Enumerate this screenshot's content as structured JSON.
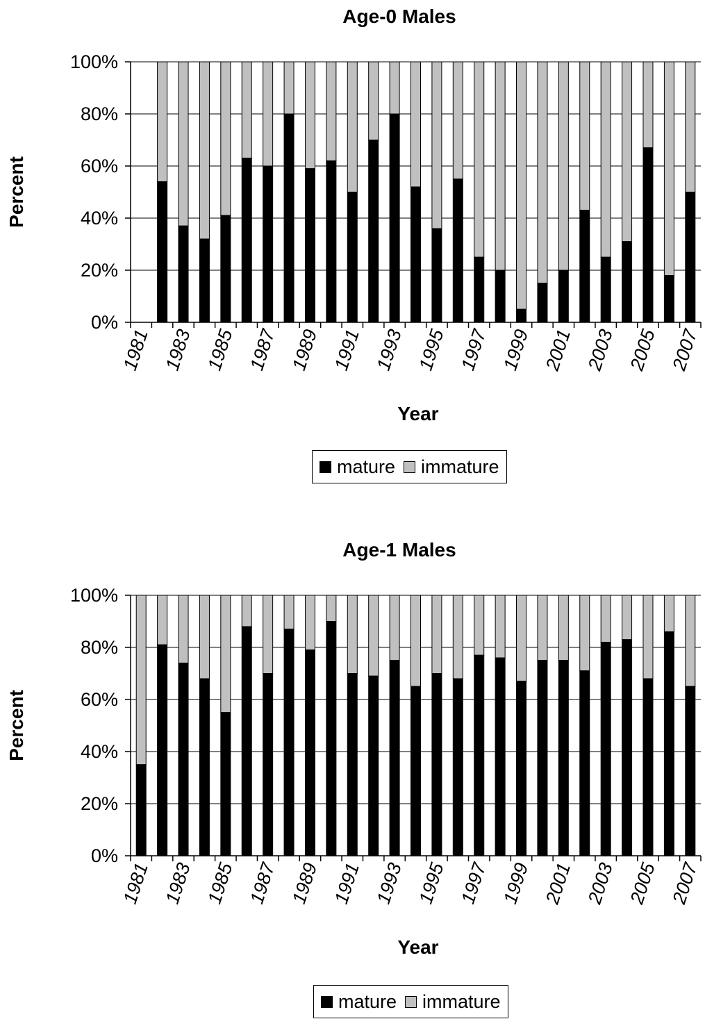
{
  "colors": {
    "mature": "#000000",
    "immature": "#c0c0c0",
    "grid": "#000000"
  },
  "legend": {
    "mature_label": "mature",
    "immature_label": "immature"
  },
  "chart_data": [
    {
      "type": "bar",
      "stacked": true,
      "percent_stacked": true,
      "title": "Age-0 Males",
      "xlabel": "Year",
      "ylabel": "Percent",
      "ylim": [
        0,
        100
      ],
      "y_ticks": [
        "0%",
        "20%",
        "40%",
        "60%",
        "80%",
        "100%"
      ],
      "x_tick_labels": [
        "1981",
        "1983",
        "1985",
        "1987",
        "1989",
        "1991",
        "1993",
        "1995",
        "1997",
        "1999",
        "2001",
        "2003",
        "2005",
        "2007"
      ],
      "grid": true,
      "legend_position": "bottom",
      "categories": [
        "1981",
        "1982",
        "1983",
        "1984",
        "1985",
        "1986",
        "1987",
        "1988",
        "1989",
        "1990",
        "1991",
        "1992",
        "1993",
        "1994",
        "1995",
        "1996",
        "1997",
        "1998",
        "1999",
        "2000",
        "2001",
        "2002",
        "2003",
        "2004",
        "2005",
        "2006",
        "2007"
      ],
      "series": [
        {
          "name": "mature",
          "values": [
            null,
            54,
            37,
            32,
            41,
            63,
            60,
            80,
            59,
            62,
            50,
            70,
            80,
            52,
            36,
            55,
            25,
            20,
            5,
            15,
            20,
            43,
            25,
            31,
            67,
            18,
            50
          ]
        },
        {
          "name": "immature",
          "values": [
            null,
            46,
            63,
            68,
            59,
            37,
            40,
            20,
            41,
            38,
            50,
            30,
            20,
            48,
            64,
            45,
            75,
            80,
            95,
            85,
            80,
            57,
            75,
            69,
            33,
            82,
            50
          ]
        }
      ]
    },
    {
      "type": "bar",
      "stacked": true,
      "percent_stacked": true,
      "title": "Age-1 Males",
      "xlabel": "Year",
      "ylabel": "Percent",
      "ylim": [
        0,
        100
      ],
      "y_ticks": [
        "0%",
        "20%",
        "40%",
        "60%",
        "80%",
        "100%"
      ],
      "x_tick_labels": [
        "1981",
        "1983",
        "1985",
        "1987",
        "1989",
        "1991",
        "1993",
        "1995",
        "1997",
        "1999",
        "2001",
        "2003",
        "2005",
        "2007"
      ],
      "grid": true,
      "legend_position": "bottom",
      "categories": [
        "1981",
        "1982",
        "1983",
        "1984",
        "1985",
        "1986",
        "1987",
        "1988",
        "1989",
        "1990",
        "1991",
        "1992",
        "1993",
        "1994",
        "1995",
        "1996",
        "1997",
        "1998",
        "1999",
        "2000",
        "2001",
        "2002",
        "2003",
        "2004",
        "2005",
        "2006",
        "2007"
      ],
      "series": [
        {
          "name": "mature",
          "values": [
            35,
            81,
            74,
            68,
            55,
            88,
            70,
            87,
            79,
            90,
            70,
            69,
            75,
            65,
            70,
            68,
            77,
            76,
            67,
            75,
            75,
            71,
            82,
            83,
            68,
            86,
            65
          ]
        },
        {
          "name": "immature",
          "values": [
            65,
            19,
            26,
            32,
            45,
            12,
            30,
            13,
            21,
            10,
            30,
            31,
            25,
            35,
            30,
            32,
            23,
            24,
            33,
            25,
            25,
            29,
            18,
            17,
            32,
            14,
            35
          ]
        }
      ]
    }
  ]
}
